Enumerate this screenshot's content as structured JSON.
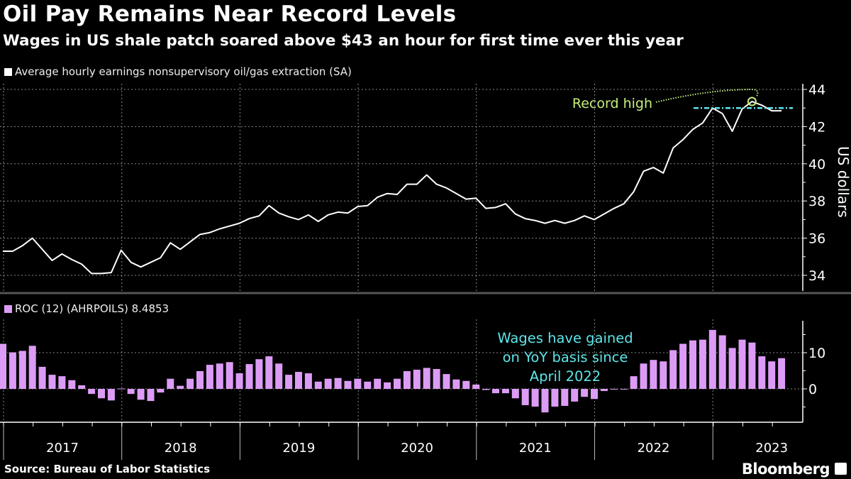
{
  "header": {
    "title": "Oil Pay Remains Near Record Levels",
    "subtitle": "Wages in US shale patch soared above $43 an hour for first time ever this year"
  },
  "footer": {
    "source": "Source: Bureau of Labor Statistics",
    "brand": "Bloomberg"
  },
  "colors": {
    "background": "#000000",
    "line": "#ffffff",
    "bars": "#dc9cf5",
    "annotation_green": "#c6ef7c",
    "annotation_cyan": "#5ee6ea"
  },
  "chart_data": [
    {
      "type": "line",
      "legend": "Average hourly earnings nonsupervisory oil/gas extraction (SA)",
      "ylabel": "US dollars",
      "ylim": [
        33.2,
        44.4
      ],
      "yticks": [
        34,
        36,
        38,
        40,
        42,
        44
      ],
      "grid": true,
      "axis_side": "right",
      "x_start": "2017-01",
      "x_frequency": "monthly",
      "values": [
        35.3,
        35.3,
        35.6,
        36.0,
        35.4,
        34.8,
        35.15,
        34.85,
        34.6,
        34.1,
        34.1,
        34.15,
        35.35,
        34.7,
        34.45,
        34.7,
        34.95,
        35.75,
        35.4,
        35.8,
        36.2,
        36.3,
        36.5,
        36.65,
        36.8,
        37.05,
        37.2,
        37.75,
        37.35,
        37.15,
        37.0,
        37.25,
        36.9,
        37.25,
        37.4,
        37.35,
        37.7,
        37.75,
        38.2,
        38.4,
        38.35,
        38.9,
        38.9,
        39.4,
        38.9,
        38.7,
        38.4,
        38.1,
        38.15,
        37.6,
        37.65,
        37.85,
        37.3,
        37.05,
        36.95,
        36.8,
        36.95,
        36.8,
        36.95,
        37.2,
        37.0,
        37.3,
        37.6,
        37.85,
        38.5,
        39.6,
        39.8,
        39.5,
        40.85,
        41.3,
        41.85,
        42.2,
        43.0,
        42.7,
        41.75,
        42.95,
        43.35,
        43.15,
        42.85,
        42.85
      ],
      "annotations": [
        {
          "text": "Record high",
          "month_index": 76,
          "value": 43.35
        },
        {
          "reference_line": 43.0,
          "style": "dash-dot"
        }
      ]
    },
    {
      "type": "bar",
      "legend": "ROC (12) (AHRPOILS) 8.4853",
      "ylim": [
        -10,
        18
      ],
      "yticks": [
        0,
        10
      ],
      "grid": true,
      "axis_side": "right",
      "x_start": "2017-01",
      "x_frequency": "monthly",
      "values": [
        12.45,
        10.1,
        10.5,
        11.9,
        6.1,
        3.9,
        3.5,
        2.4,
        1.0,
        -1.4,
        -2.6,
        -3.2,
        0.1,
        -1.4,
        -3.0,
        -3.35,
        -1.0,
        2.8,
        0.85,
        2.8,
        4.9,
        6.65,
        7.0,
        7.4,
        4.3,
        6.85,
        8.2,
        9.0,
        7.0,
        3.9,
        4.7,
        4.3,
        2.0,
        2.8,
        3.0,
        2.2,
        2.8,
        2.0,
        2.8,
        1.8,
        2.8,
        4.9,
        5.3,
        5.8,
        5.5,
        4.1,
        2.6,
        2.2,
        1.2,
        -0.3,
        -1.2,
        -1.2,
        -2.6,
        -4.5,
        -4.9,
        -6.5,
        -4.9,
        -4.7,
        -3.5,
        -2.2,
        -2.8,
        -0.6,
        -0.05,
        -0.05,
        3.5,
        7.0,
        8.0,
        7.6,
        10.7,
        12.45,
        13.4,
        13.6,
        16.3,
        14.8,
        11.3,
        13.6,
        12.8,
        9.0,
        7.6,
        8.4853
      ],
      "annotation": "Wages have gained on YoY basis since April 2022"
    }
  ],
  "xaxis": {
    "tick_labels": [
      "2017",
      "2018",
      "2019",
      "2020",
      "2021",
      "2022",
      "2023"
    ]
  }
}
